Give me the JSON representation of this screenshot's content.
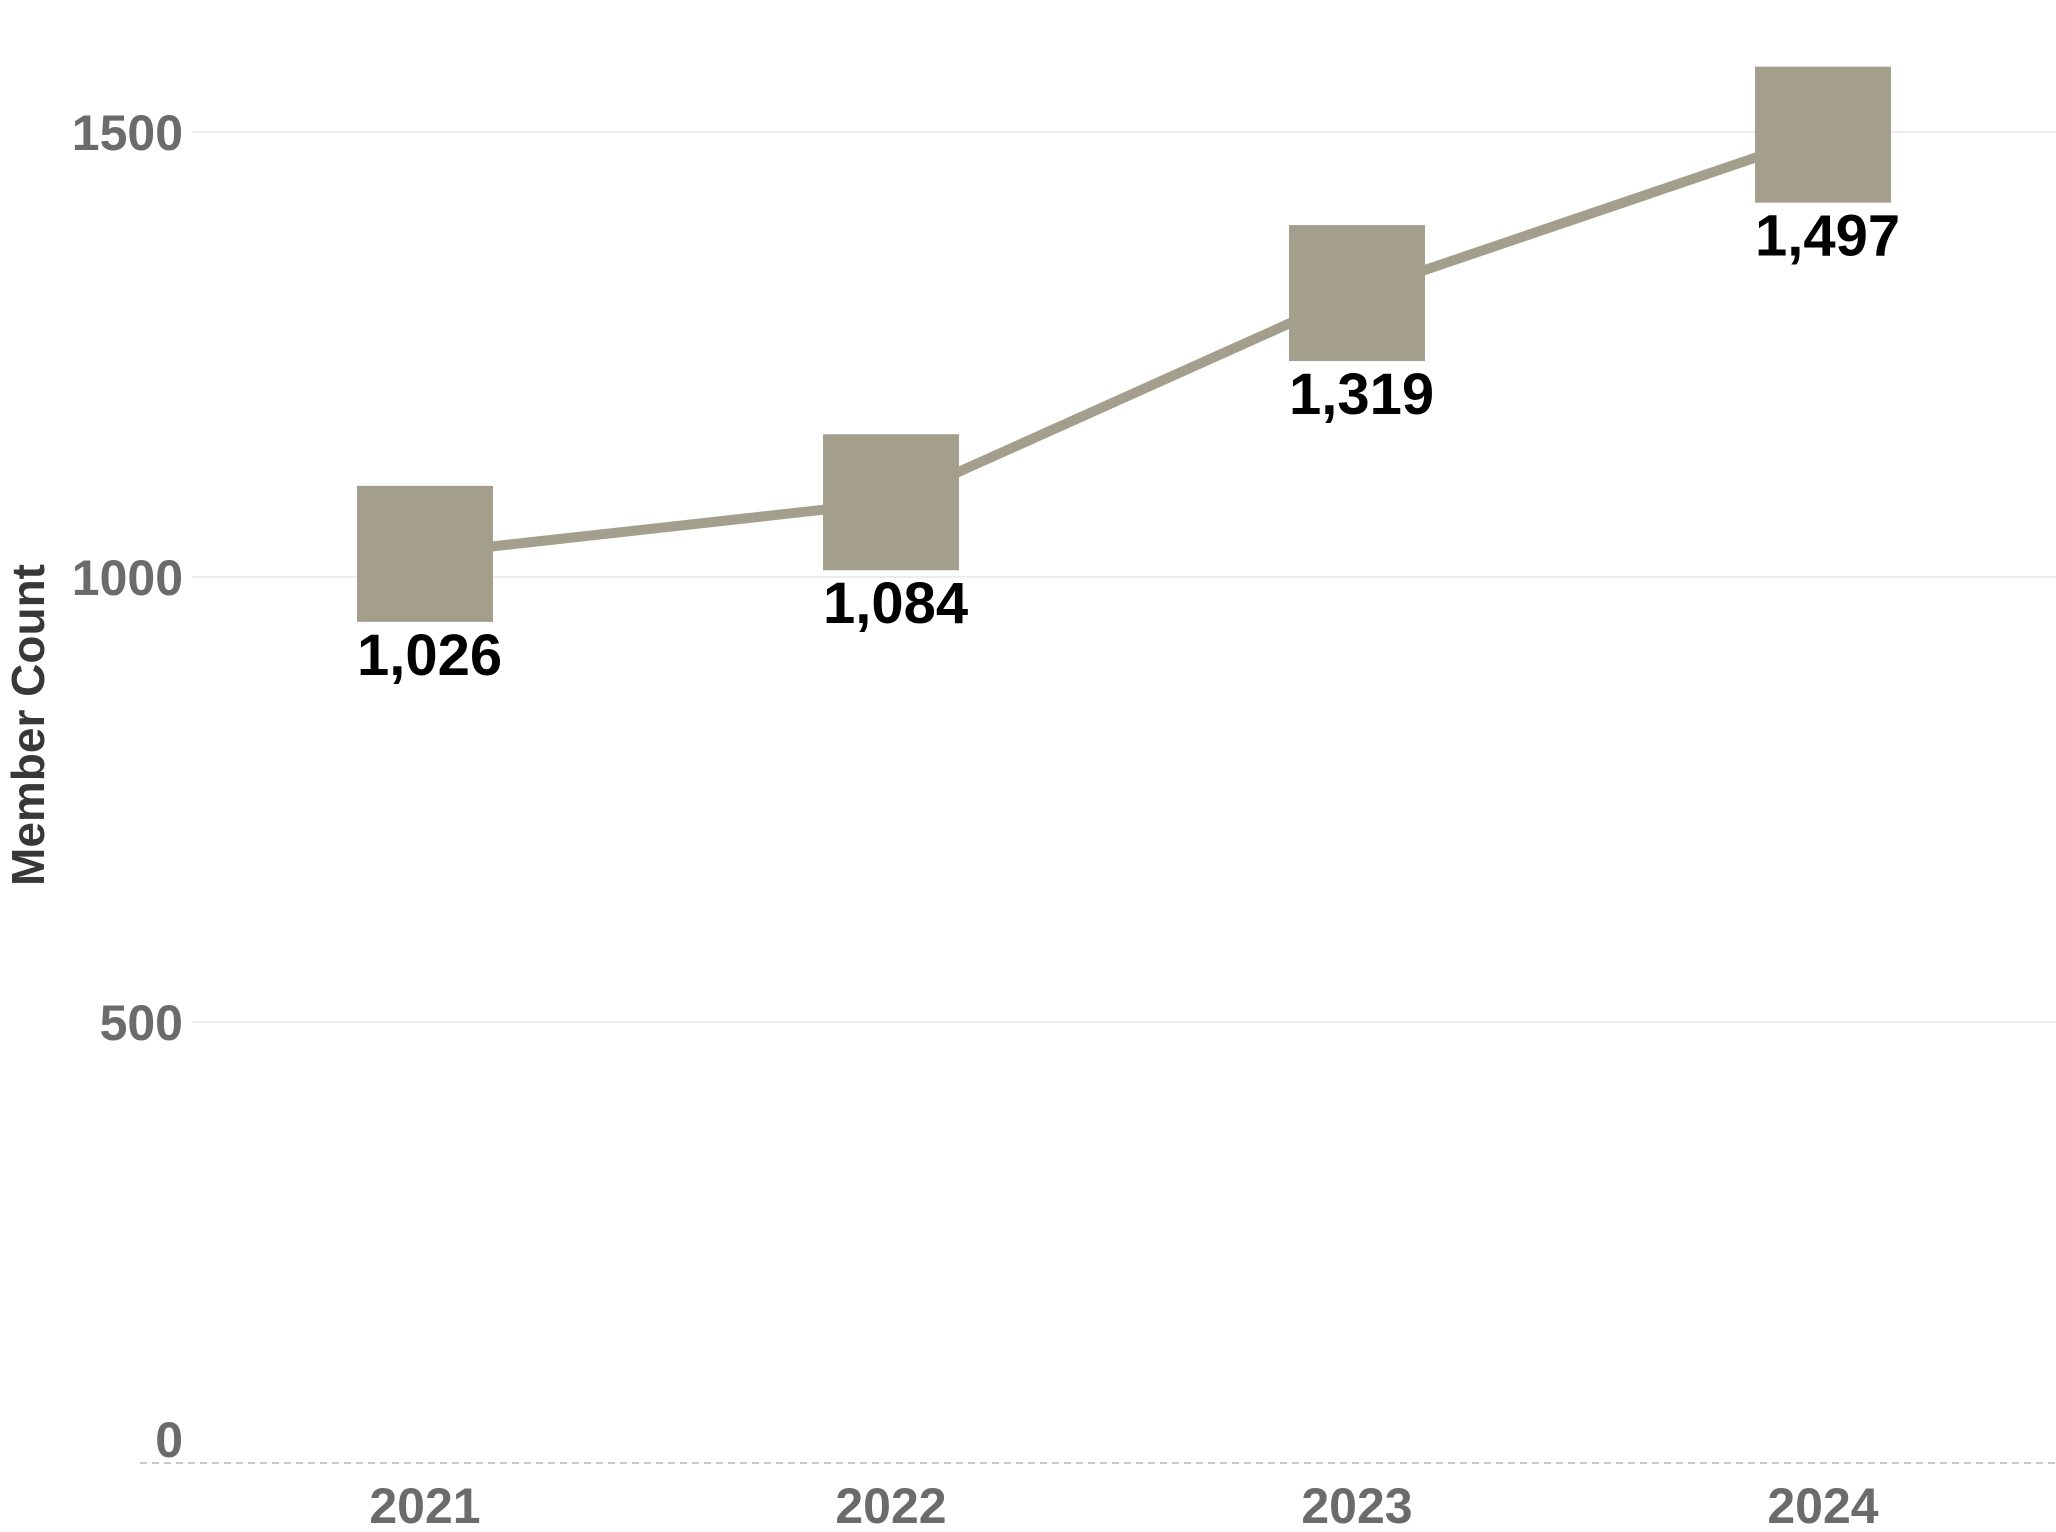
{
  "chart_data": {
    "type": "line",
    "categories": [
      "2021",
      "2022",
      "2023",
      "2024"
    ],
    "series": [
      {
        "name": "Member Count",
        "values": [
          1026,
          1084,
          1319,
          1497
        ]
      }
    ],
    "point_labels": [
      "1,026",
      "1,084",
      "1,319",
      "1,497"
    ],
    "yticks": [
      {
        "value": 1500,
        "label": "1500"
      },
      {
        "value": 1000,
        "label": "1000"
      },
      {
        "value": 500,
        "label": "500"
      },
      {
        "value": 0,
        "label": "0"
      }
    ],
    "title": "",
    "xlabel": "",
    "ylabel": "Member Count",
    "ylim": [
      0,
      1650
    ],
    "grid": true,
    "legend": false,
    "marker": "square",
    "colors": {
      "series": "#a49e8d",
      "gridline": "#ececec",
      "zero_line": "#c9c9c9",
      "tick_label": "#6b6b6b",
      "axis_title": "#383838",
      "point_label": "#000000",
      "background": "#ffffff"
    }
  }
}
